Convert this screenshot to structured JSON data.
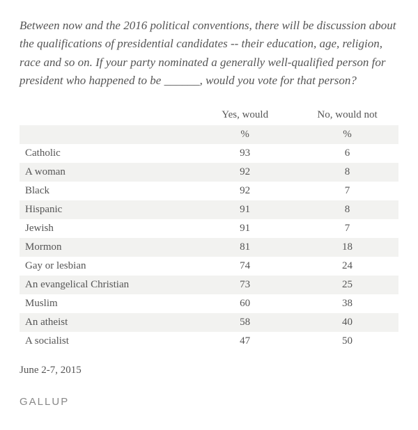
{
  "question": "Between now and the 2016 political conventions, there will be discussion about the qualifications of presidential candidates -- their education, age, religion, race and so on. If your party nominated a generally well-qualified person for president who happened to be ______, would you vote for that person?",
  "columns": {
    "yes": "Yes, would",
    "no": "No, would not",
    "unit": "%"
  },
  "rows": [
    {
      "label": "Catholic",
      "yes": 93,
      "no": 6
    },
    {
      "label": "A woman",
      "yes": 92,
      "no": 8
    },
    {
      "label": "Black",
      "yes": 92,
      "no": 7
    },
    {
      "label": "Hispanic",
      "yes": 91,
      "no": 8
    },
    {
      "label": "Jewish",
      "yes": 91,
      "no": 7
    },
    {
      "label": "Mormon",
      "yes": 81,
      "no": 18
    },
    {
      "label": "Gay or lesbian",
      "yes": 74,
      "no": 24
    },
    {
      "label": "An evangelical Christian",
      "yes": 73,
      "no": 25
    },
    {
      "label": "Muslim",
      "yes": 60,
      "no": 38
    },
    {
      "label": "An atheist",
      "yes": 58,
      "no": 40
    },
    {
      "label": "A socialist",
      "yes": 47,
      "no": 50
    }
  ],
  "date": "June 2-7, 2015",
  "source": "GALLUP",
  "styling": {
    "row_bg_even": "#f2f2f0",
    "row_bg_odd": "#ffffff",
    "text_color": "#555555",
    "source_color": "#888888",
    "font_family": "Georgia, serif",
    "question_fontsize": 17,
    "table_fontsize": 15
  }
}
